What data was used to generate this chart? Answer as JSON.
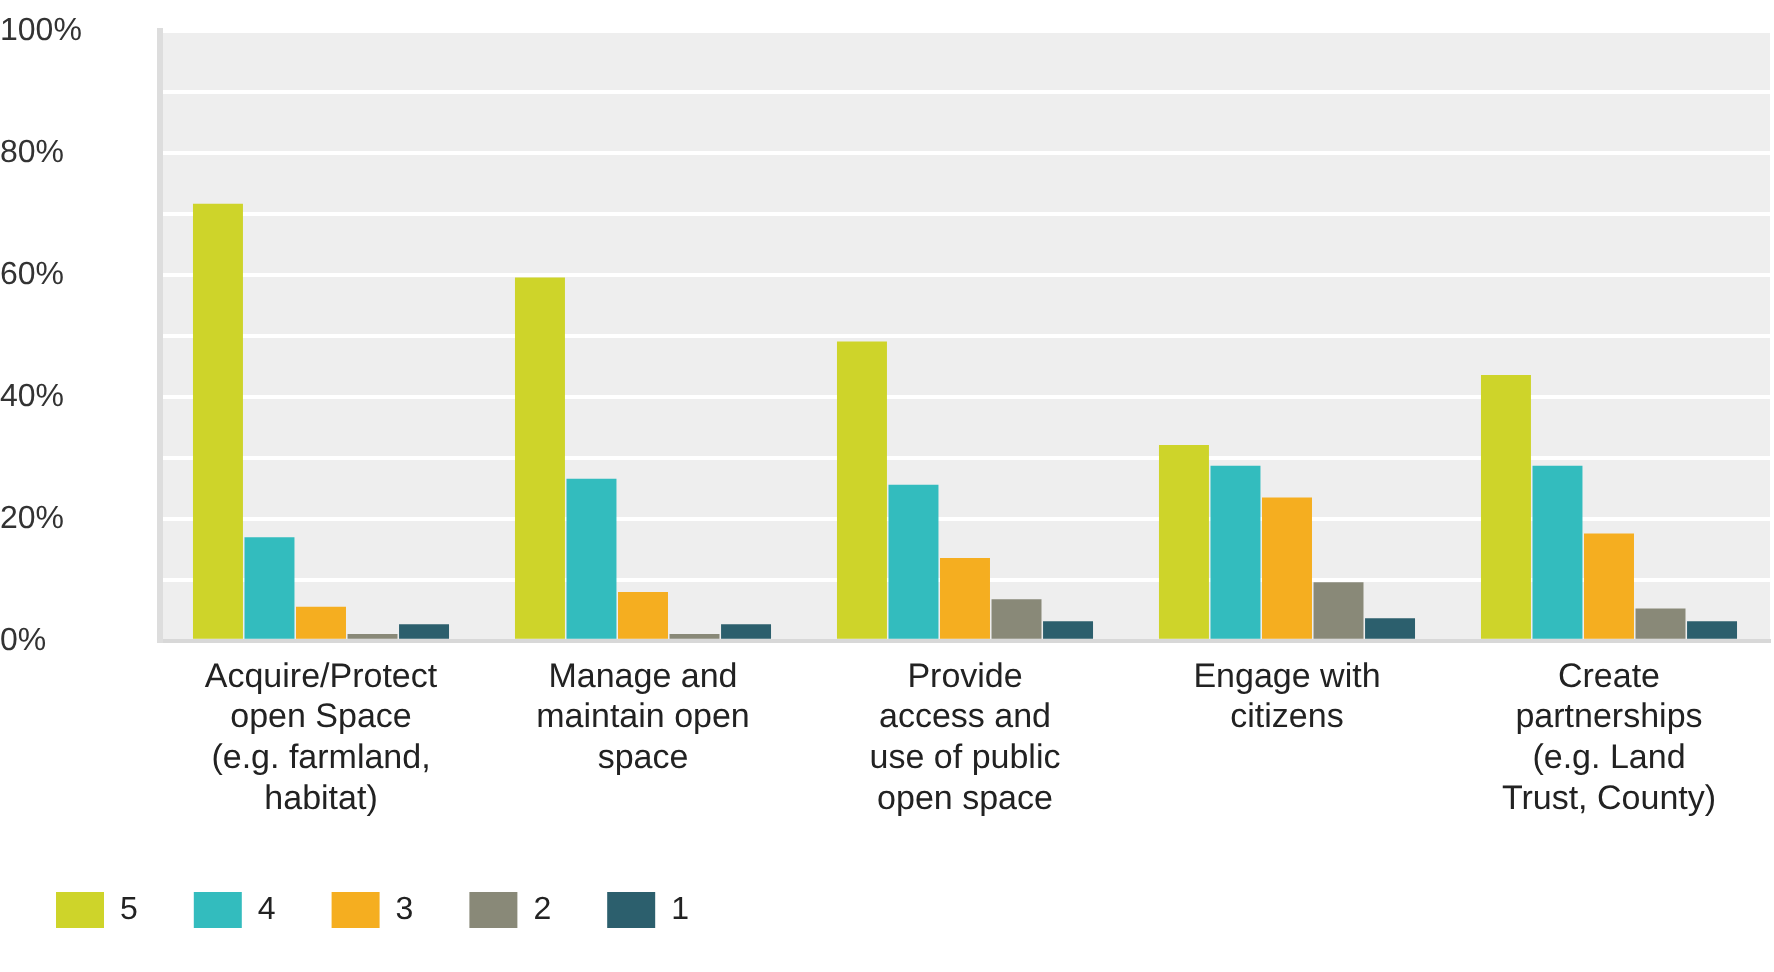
{
  "chart_data": {
    "type": "bar",
    "categories": [
      "Acquire/Protect\nopen Space\n(e.g. farmland,\nhabitat)",
      "Manage and\nmaintain open\nspace",
      "Provide\naccess and\nuse of public\nopen space",
      "Engage with\ncitizens",
      "Create\npartnerships\n(e.g. Land\nTrust, County)"
    ],
    "series": [
      {
        "name": "5",
        "color": "#ced42a",
        "values": [
          71.7,
          59.6,
          49.1,
          32.1,
          43.6
        ]
      },
      {
        "name": "4",
        "color": "#33bcbe",
        "values": [
          17.0,
          26.6,
          25.6,
          28.7,
          28.7
        ]
      },
      {
        "name": "3",
        "color": "#f5ae20",
        "values": [
          5.6,
          8.0,
          13.6,
          23.5,
          17.6
        ]
      },
      {
        "name": "2",
        "color": "#898978",
        "values": [
          1.1,
          1.1,
          6.8,
          9.6,
          5.3
        ]
      },
      {
        "name": "1",
        "color": "#2c5f6d",
        "values": [
          2.7,
          2.7,
          3.2,
          3.7,
          3.2
        ]
      }
    ],
    "ylim": [
      0,
      100
    ],
    "yticks": [
      {
        "value": 0,
        "label": "0%"
      },
      {
        "value": 10,
        "label": null
      },
      {
        "value": 20,
        "label": "20%"
      },
      {
        "value": 30,
        "label": null
      },
      {
        "value": 40,
        "label": "40%"
      },
      {
        "value": 50,
        "label": null
      },
      {
        "value": 60,
        "label": "60%"
      },
      {
        "value": 70,
        "label": null
      },
      {
        "value": 80,
        "label": "80%"
      },
      {
        "value": 90,
        "label": null
      },
      {
        "value": 100,
        "label": "100%"
      }
    ],
    "grid": "y",
    "legend": "bottom"
  }
}
